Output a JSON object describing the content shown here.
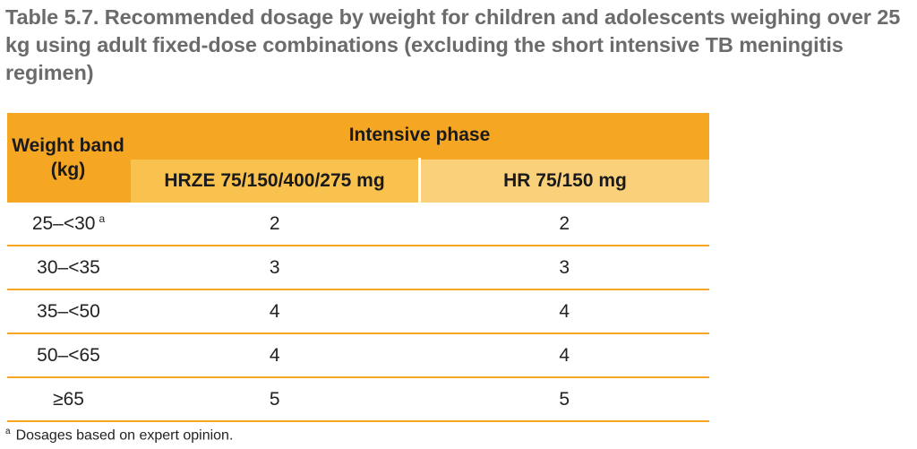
{
  "caption": "Table 5.7. Recommended dosage by weight for children and adolescents weighing over 25 kg using adult fixed-dose combinations (excluding the short intensive TB meningitis regimen)",
  "table": {
    "header": {
      "weight_band": "Weight band (kg)",
      "phase": "Intensive phase",
      "col1": "HRZE 75/150/400/275 mg",
      "col2": "HR 75/150 mg"
    },
    "rows": [
      {
        "weight": "25–<30",
        "sup": "a",
        "hrze": "2",
        "hr": "2"
      },
      {
        "weight": "30–<35",
        "sup": "",
        "hrze": "3",
        "hr": "3"
      },
      {
        "weight": "35–<50",
        "sup": "",
        "hrze": "4",
        "hr": "4"
      },
      {
        "weight": "50–<65",
        "sup": "",
        "hrze": "4",
        "hr": "4"
      },
      {
        "weight": "≥65",
        "sup": "",
        "hrze": "5",
        "hr": "5"
      }
    ]
  },
  "footnote": {
    "marker": "a",
    "text": "Dosages based on expert opinion."
  },
  "colors": {
    "header_dark": "#f5a623",
    "header_mid": "#f9c14d",
    "header_light": "#fbd07a",
    "caption_text": "#6b6b6b"
  }
}
